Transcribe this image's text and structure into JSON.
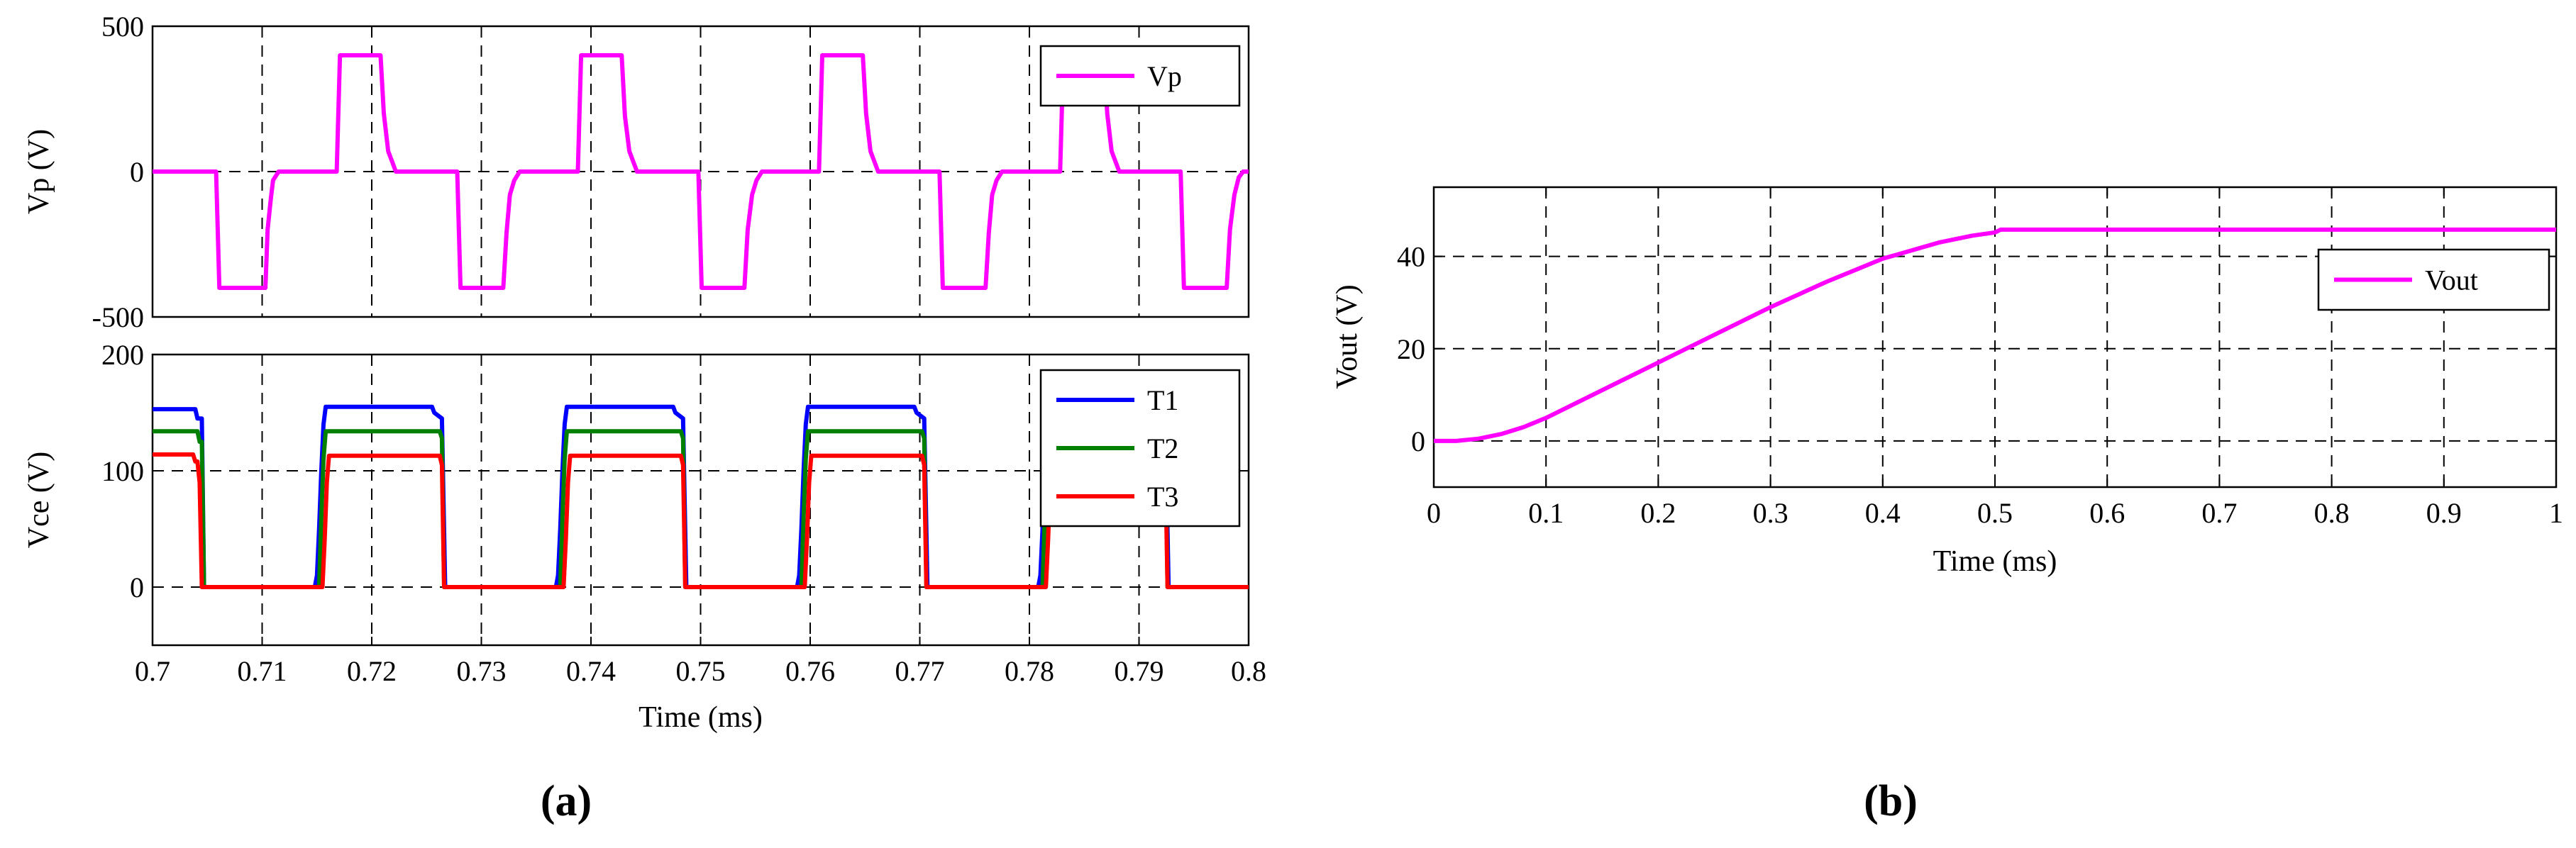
{
  "panels": {
    "a": "(a)",
    "b": "(b)"
  },
  "chart_data": [
    {
      "type": "line",
      "panel": "a-top",
      "ylabel": "Vp (V)",
      "xlim": [
        0.7,
        0.8
      ],
      "ylim": [
        -500,
        500
      ],
      "y_ticks": [
        500,
        0,
        -500
      ],
      "grid": true,
      "legend_position": "top-right",
      "series": [
        {
          "name": "Vp",
          "color": "#ff00ff",
          "points": [
            [
              0.7,
              0
            ],
            [
              0.7058,
              0
            ],
            [
              0.7061,
              -400
            ],
            [
              0.7103,
              -400
            ],
            [
              0.7105,
              -200
            ],
            [
              0.7108,
              -90
            ],
            [
              0.711,
              -30
            ],
            [
              0.7115,
              0
            ],
            [
              0.7168,
              0
            ],
            [
              0.7171,
              400
            ],
            [
              0.7208,
              400
            ],
            [
              0.7211,
              200
            ],
            [
              0.7215,
              70
            ],
            [
              0.7222,
              0
            ],
            [
              0.7278,
              0
            ],
            [
              0.7281,
              -400
            ],
            [
              0.732,
              -400
            ],
            [
              0.7323,
              -210
            ],
            [
              0.7326,
              -80
            ],
            [
              0.733,
              -30
            ],
            [
              0.7335,
              0
            ],
            [
              0.7388,
              0
            ],
            [
              0.7391,
              400
            ],
            [
              0.7428,
              400
            ],
            [
              0.7431,
              190
            ],
            [
              0.7435,
              70
            ],
            [
              0.7442,
              0
            ],
            [
              0.7498,
              0
            ],
            [
              0.7501,
              -400
            ],
            [
              0.754,
              -400
            ],
            [
              0.7543,
              -200
            ],
            [
              0.7547,
              -80
            ],
            [
              0.7551,
              -30
            ],
            [
              0.7556,
              0
            ],
            [
              0.7608,
              0
            ],
            [
              0.7611,
              400
            ],
            [
              0.7648,
              400
            ],
            [
              0.7651,
              200
            ],
            [
              0.7655,
              70
            ],
            [
              0.7662,
              0
            ],
            [
              0.7718,
              0
            ],
            [
              0.7721,
              -400
            ],
            [
              0.776,
              -400
            ],
            [
              0.7763,
              -210
            ],
            [
              0.7766,
              -80
            ],
            [
              0.777,
              -30
            ],
            [
              0.7775,
              0
            ],
            [
              0.7828,
              0
            ],
            [
              0.7831,
              400
            ],
            [
              0.7868,
              400
            ],
            [
              0.7871,
              200
            ],
            [
              0.7875,
              70
            ],
            [
              0.7882,
              0
            ],
            [
              0.7938,
              0
            ],
            [
              0.7941,
              -400
            ],
            [
              0.798,
              -400
            ],
            [
              0.7983,
              -200
            ],
            [
              0.7987,
              -80
            ],
            [
              0.7991,
              -20
            ],
            [
              0.7995,
              0
            ],
            [
              0.8,
              0
            ]
          ]
        }
      ]
    },
    {
      "type": "line",
      "panel": "a-bottom",
      "xlabel": "Time (ms)",
      "ylabel": "Vce (V)",
      "xlim": [
        0.7,
        0.8
      ],
      "ylim": [
        -50,
        200
      ],
      "x_ticks": [
        0.7,
        0.71,
        0.72,
        0.73,
        0.74,
        0.75,
        0.76,
        0.77,
        0.78,
        0.79,
        0.8
      ],
      "x_tick_labels": [
        "0.7",
        "0.71",
        "0.72",
        "0.73",
        "0.74",
        "0.75",
        "0.76",
        "0.77",
        "0.78",
        "0.79",
        "0.8"
      ],
      "y_ticks": [
        200,
        100,
        0
      ],
      "grid": true,
      "legend_position": "top-right",
      "series": [
        {
          "name": "T1",
          "color": "#0000ff",
          "points": [
            [
              0.7,
              153
            ],
            [
              0.7039,
              153
            ],
            [
              0.7041,
              145
            ],
            [
              0.7045,
              145
            ],
            [
              0.7047,
              0
            ],
            [
              0.7148,
              0
            ],
            [
              0.715,
              10
            ],
            [
              0.7152,
              50
            ],
            [
              0.7154,
              100
            ],
            [
              0.7156,
              140
            ],
            [
              0.7158,
              155
            ],
            [
              0.7255,
              155
            ],
            [
              0.7257,
              150
            ],
            [
              0.7264,
              145
            ],
            [
              0.7267,
              0
            ],
            [
              0.7368,
              0
            ],
            [
              0.737,
              10
            ],
            [
              0.7372,
              50
            ],
            [
              0.7374,
              100
            ],
            [
              0.7376,
              140
            ],
            [
              0.7378,
              155
            ],
            [
              0.7475,
              155
            ],
            [
              0.7477,
              150
            ],
            [
              0.7484,
              145
            ],
            [
              0.7487,
              0
            ],
            [
              0.7588,
              0
            ],
            [
              0.759,
              10
            ],
            [
              0.7592,
              50
            ],
            [
              0.7594,
              100
            ],
            [
              0.7596,
              140
            ],
            [
              0.7598,
              155
            ],
            [
              0.7695,
              155
            ],
            [
              0.7697,
              150
            ],
            [
              0.7704,
              145
            ],
            [
              0.7707,
              0
            ],
            [
              0.7808,
              0
            ],
            [
              0.781,
              10
            ],
            [
              0.7812,
              50
            ],
            [
              0.7814,
              100
            ],
            [
              0.7816,
              140
            ],
            [
              0.7818,
              155
            ],
            [
              0.7915,
              155
            ],
            [
              0.7917,
              150
            ],
            [
              0.7924,
              145
            ],
            [
              0.7927,
              0
            ],
            [
              0.8,
              0
            ]
          ]
        },
        {
          "name": "T2",
          "color": "#008000",
          "points": [
            [
              0.7,
              134
            ],
            [
              0.7041,
              134
            ],
            [
              0.7043,
              125
            ],
            [
              0.7045,
              125
            ],
            [
              0.7047,
              0
            ],
            [
              0.7152,
              0
            ],
            [
              0.7154,
              60
            ],
            [
              0.7156,
              110
            ],
            [
              0.7158,
              134
            ],
            [
              0.7262,
              134
            ],
            [
              0.7264,
              128
            ],
            [
              0.7266,
              0
            ],
            [
              0.7372,
              0
            ],
            [
              0.7374,
              60
            ],
            [
              0.7376,
              110
            ],
            [
              0.7378,
              134
            ],
            [
              0.7482,
              134
            ],
            [
              0.7484,
              128
            ],
            [
              0.7486,
              0
            ],
            [
              0.7592,
              0
            ],
            [
              0.7594,
              60
            ],
            [
              0.7596,
              110
            ],
            [
              0.7598,
              134
            ],
            [
              0.7702,
              134
            ],
            [
              0.7704,
              128
            ],
            [
              0.7706,
              0
            ],
            [
              0.7812,
              0
            ],
            [
              0.7814,
              60
            ],
            [
              0.7816,
              110
            ],
            [
              0.7818,
              134
            ],
            [
              0.7922,
              134
            ],
            [
              0.7924,
              128
            ],
            [
              0.7926,
              0
            ],
            [
              0.8,
              0
            ]
          ]
        },
        {
          "name": "T3",
          "color": "#ff0000",
          "points": [
            [
              0.7,
              114
            ],
            [
              0.7037,
              114
            ],
            [
              0.7039,
              108
            ],
            [
              0.7041,
              108
            ],
            [
              0.7043,
              90
            ],
            [
              0.7045,
              0
            ],
            [
              0.7155,
              0
            ],
            [
              0.7157,
              40
            ],
            [
              0.7159,
              90
            ],
            [
              0.7161,
              113
            ],
            [
              0.7262,
              113
            ],
            [
              0.7264,
              105
            ],
            [
              0.7266,
              0
            ],
            [
              0.7375,
              0
            ],
            [
              0.7377,
              40
            ],
            [
              0.7379,
              90
            ],
            [
              0.7381,
              113
            ],
            [
              0.7482,
              113
            ],
            [
              0.7484,
              105
            ],
            [
              0.7486,
              0
            ],
            [
              0.7595,
              0
            ],
            [
              0.7597,
              40
            ],
            [
              0.7599,
              90
            ],
            [
              0.7601,
              113
            ],
            [
              0.7702,
              113
            ],
            [
              0.7704,
              105
            ],
            [
              0.7706,
              0
            ],
            [
              0.7815,
              0
            ],
            [
              0.7817,
              40
            ],
            [
              0.7819,
              90
            ],
            [
              0.7821,
              113
            ],
            [
              0.7922,
              113
            ],
            [
              0.7924,
              105
            ],
            [
              0.7926,
              0
            ],
            [
              0.8,
              0
            ]
          ]
        }
      ]
    },
    {
      "type": "line",
      "panel": "b",
      "xlabel": "Time (ms)",
      "ylabel": "Vout (V)",
      "xlim": [
        0,
        1
      ],
      "ylim": [
        -10,
        55
      ],
      "x_ticks": [
        0,
        0.1,
        0.2,
        0.3,
        0.4,
        0.5,
        0.6,
        0.7,
        0.8,
        0.9,
        1
      ],
      "x_tick_labels": [
        "0",
        "0.1",
        "0.2",
        "0.3",
        "0.4",
        "0.5",
        "0.6",
        "0.7",
        "0.8",
        "0.9",
        "1"
      ],
      "y_ticks": [
        40,
        20,
        0
      ],
      "grid": true,
      "legend_position": "right",
      "series": [
        {
          "name": "Vout",
          "color": "#ff00ff",
          "points": [
            [
              0,
              0
            ],
            [
              0.02,
              0
            ],
            [
              0.04,
              0.5
            ],
            [
              0.06,
              1.5
            ],
            [
              0.08,
              3
            ],
            [
              0.1,
              5
            ],
            [
              0.15,
              11
            ],
            [
              0.2,
              17
            ],
            [
              0.25,
              23
            ],
            [
              0.3,
              29
            ],
            [
              0.35,
              34.5
            ],
            [
              0.4,
              39.5
            ],
            [
              0.45,
              43
            ],
            [
              0.48,
              44.5
            ],
            [
              0.5,
              45.2
            ],
            [
              0.505,
              45.8
            ],
            [
              0.55,
              45.8
            ],
            [
              0.6,
              45.8
            ],
            [
              0.7,
              45.8
            ],
            [
              0.8,
              45.8
            ],
            [
              0.9,
              45.8
            ],
            [
              1.0,
              45.8
            ]
          ]
        }
      ]
    }
  ]
}
